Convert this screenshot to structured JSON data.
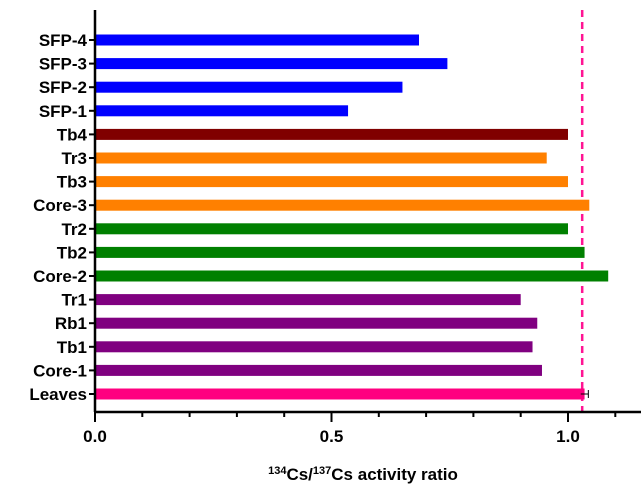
{
  "chart_data": {
    "type": "bar",
    "orientation": "horizontal",
    "categories": [
      "SFP-4",
      "SFP-3",
      "SFP-2",
      "SFP-1",
      "Tb4",
      "Tr3",
      "Tb3",
      "Core-3",
      "Tr2",
      "Tb2",
      "Core-2",
      "Tr1",
      "Rb1",
      "Tb1",
      "Core-1",
      "Leaves"
    ],
    "values": [
      0.685,
      0.745,
      0.65,
      0.535,
      1.0,
      0.955,
      1.0,
      1.045,
      1.0,
      1.035,
      1.085,
      0.9,
      0.935,
      0.925,
      0.945,
      1.035
    ],
    "colors": [
      "#0000ff",
      "#0000ff",
      "#0000ff",
      "#0000ff",
      "#800000",
      "#ff8000",
      "#ff8000",
      "#ff8000",
      "#008000",
      "#008000",
      "#008000",
      "#800080",
      "#800080",
      "#800080",
      "#800080",
      "#ff0080"
    ],
    "error_bars": [
      null,
      null,
      null,
      null,
      null,
      null,
      null,
      null,
      null,
      null,
      null,
      null,
      null,
      null,
      null,
      0.008
    ],
    "reference_line": {
      "value": 1.03,
      "color": "#ff1493",
      "style": "dashed"
    },
    "xlim": [
      0,
      1.15
    ],
    "xticks": [
      {
        "value": 0.0,
        "label": "0.0"
      },
      {
        "value": 0.5,
        "label": "0.5"
      },
      {
        "value": 1.0,
        "label": "1.0"
      }
    ],
    "minor_tick_step": 0.1,
    "xlabel": {
      "sup1": "134",
      "part1": "Cs/",
      "sup2": "137",
      "part2": "Cs activity ratio"
    },
    "grid": false
  }
}
